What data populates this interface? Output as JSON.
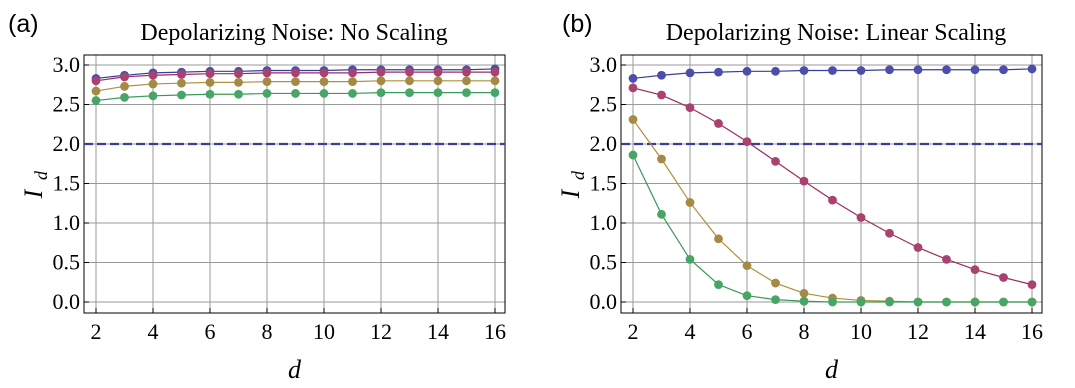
{
  "chart_data": [
    {
      "panel_label": "(a)",
      "type": "line",
      "title": "Depolarizing Noise: No Scaling",
      "xlabel": "d",
      "ylabel": "I",
      "ylabel_sub": "d",
      "xlim": [
        2,
        16
      ],
      "ylim": [
        0,
        3
      ],
      "xticks": [
        2,
        4,
        6,
        8,
        10,
        12,
        14,
        16
      ],
      "yticks": [
        "0.0",
        "0.5",
        "1.0",
        "1.5",
        "2.0",
        "2.5",
        "3.0"
      ],
      "grid": true,
      "reference_line": {
        "y": 2.0,
        "color": "#3a3d9a",
        "style": "dashed"
      },
      "x": [
        2,
        3,
        4,
        5,
        6,
        7,
        8,
        9,
        10,
        11,
        12,
        13,
        14,
        15,
        16
      ],
      "series": [
        {
          "color": "#3a3d9a",
          "marker": "#4b4fab",
          "values": [
            2.83,
            2.87,
            2.9,
            2.91,
            2.92,
            2.92,
            2.93,
            2.93,
            2.93,
            2.94,
            2.94,
            2.94,
            2.94,
            2.94,
            2.95
          ]
        },
        {
          "color": "#9a2c5e",
          "marker": "#a9426f",
          "values": [
            2.8,
            2.85,
            2.87,
            2.88,
            2.89,
            2.89,
            2.9,
            2.9,
            2.9,
            2.9,
            2.91,
            2.91,
            2.91,
            2.91,
            2.91
          ]
        },
        {
          "color": "#b08f3e",
          "marker": "#a58a45",
          "values": [
            2.67,
            2.73,
            2.76,
            2.77,
            2.78,
            2.78,
            2.79,
            2.79,
            2.79,
            2.79,
            2.8,
            2.8,
            2.8,
            2.8,
            2.8
          ]
        },
        {
          "color": "#3a9a5a",
          "marker": "#47a565",
          "values": [
            2.55,
            2.59,
            2.61,
            2.62,
            2.63,
            2.63,
            2.64,
            2.64,
            2.64,
            2.64,
            2.65,
            2.65,
            2.65,
            2.65,
            2.65
          ]
        }
      ]
    },
    {
      "panel_label": "(b)",
      "type": "line",
      "title": "Depolarizing Noise: Linear Scaling",
      "xlabel": "d",
      "ylabel": "I",
      "ylabel_sub": "d",
      "xlim": [
        2,
        16
      ],
      "ylim": [
        0,
        3
      ],
      "xticks": [
        2,
        4,
        6,
        8,
        10,
        12,
        14,
        16
      ],
      "yticks": [
        "0.0",
        "0.5",
        "1.0",
        "1.5",
        "2.0",
        "2.5",
        "3.0"
      ],
      "grid": true,
      "reference_line": {
        "y": 2.0,
        "color": "#3a3d9a",
        "style": "dashed"
      },
      "x": [
        2,
        3,
        4,
        5,
        6,
        7,
        8,
        9,
        10,
        11,
        12,
        13,
        14,
        15,
        16
      ],
      "series": [
        {
          "color": "#3a3d9a",
          "marker": "#4b4fab",
          "values": [
            2.83,
            2.87,
            2.9,
            2.91,
            2.92,
            2.92,
            2.93,
            2.93,
            2.93,
            2.94,
            2.94,
            2.94,
            2.94,
            2.94,
            2.95
          ]
        },
        {
          "color": "#9a2c5e",
          "marker": "#a9426f",
          "values": [
            2.71,
            2.62,
            2.46,
            2.26,
            2.03,
            1.78,
            1.53,
            1.29,
            1.07,
            0.87,
            0.69,
            0.54,
            0.41,
            0.31,
            0.22
          ]
        },
        {
          "color": "#b08f3e",
          "marker": "#a58a45",
          "values": [
            2.31,
            1.81,
            1.26,
            0.8,
            0.46,
            0.24,
            0.11,
            0.05,
            0.02,
            0.01,
            0.0,
            0.0,
            0.0,
            0.0,
            0.0
          ]
        },
        {
          "color": "#3a9a5a",
          "marker": "#47a565",
          "values": [
            1.86,
            1.11,
            0.54,
            0.22,
            0.08,
            0.03,
            0.01,
            0.0,
            0.0,
            0.0,
            0.0,
            0.0,
            0.0,
            0.0,
            0.0
          ]
        }
      ]
    }
  ]
}
